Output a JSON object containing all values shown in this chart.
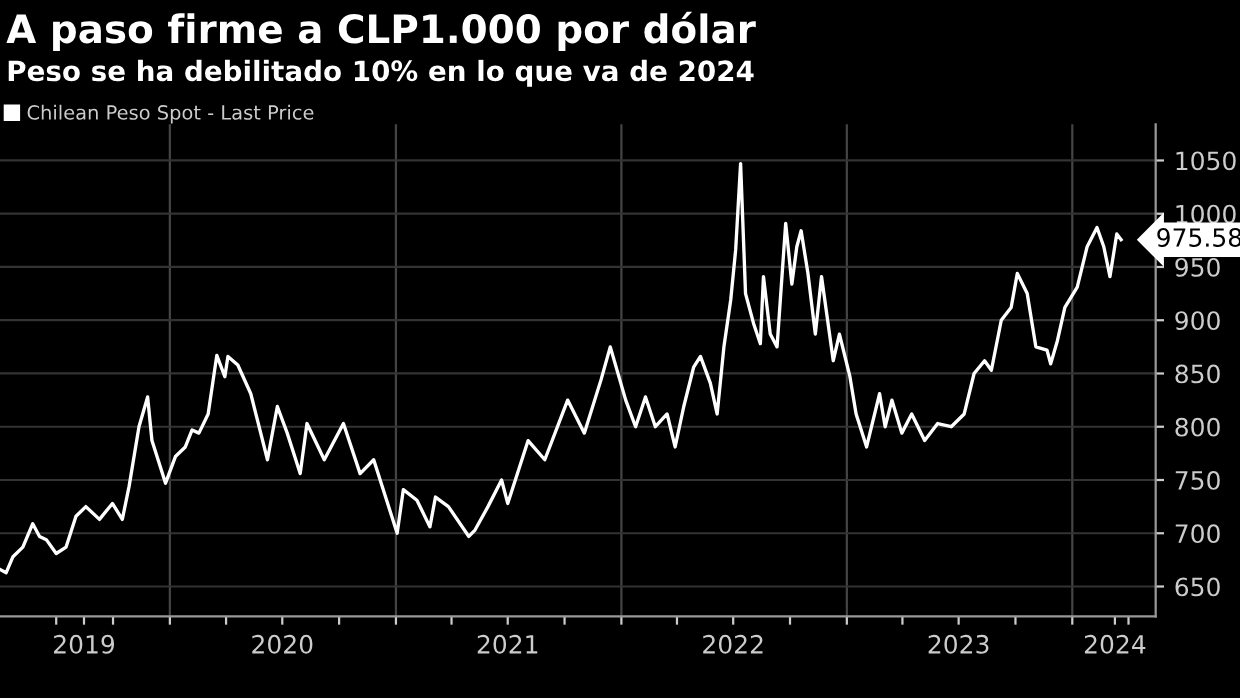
{
  "chart_data": {
    "type": "line",
    "title": "A paso firme a CLP1.000 por dólar",
    "subtitle": "Peso se ha debilitado 10% en lo que va de 2024",
    "x": [
      "2019-04-01",
      "2019-04-11",
      "2019-04-22",
      "2019-05-08",
      "2019-05-24",
      "2019-06-04",
      "2019-06-15",
      "2019-07-01",
      "2019-07-17",
      "2019-08-02",
      "2019-08-18",
      "2019-09-09",
      "2019-09-30",
      "2019-10-16",
      "2019-10-27",
      "2019-11-12",
      "2019-11-26",
      "2019-12-03",
      "2019-12-25",
      "2020-01-10",
      "2020-01-26",
      "2020-02-06",
      "2020-02-17",
      "2020-03-03",
      "2020-03-17",
      "2020-03-30",
      "2020-04-04",
      "2020-04-20",
      "2020-05-11",
      "2020-06-07",
      "2020-06-23",
      "2020-07-09",
      "2020-07-30",
      "2020-08-10",
      "2020-09-07",
      "2020-10-08",
      "2020-11-04",
      "2020-11-26",
      "2021-01-03",
      "2021-01-13",
      "2021-02-04",
      "2021-02-25",
      "2021-03-06",
      "2021-03-27",
      "2021-04-29",
      "2021-05-09",
      "2021-05-30",
      "2021-06-21",
      "2021-07-01",
      "2021-08-03",
      "2021-08-30",
      "2021-10-06",
      "2021-11-02",
      "2021-11-29",
      "2021-12-14",
      "2022-01-08",
      "2022-01-24",
      "2022-02-09",
      "2022-02-25",
      "2022-03-16",
      "2022-03-29",
      "2022-04-12",
      "2022-04-28",
      "2022-05-09",
      "2022-05-25",
      "2022-06-05",
      "2022-06-16",
      "2022-06-27",
      "2022-07-05",
      "2022-07-13",
      "2022-07-21",
      "2022-08-03",
      "2022-08-14",
      "2022-08-19",
      "2022-08-30",
      "2022-09-10",
      "2022-09-24",
      "2022-10-04",
      "2022-10-12",
      "2022-10-19",
      "2022-10-30",
      "2022-11-11",
      "2022-11-21",
      "2022-12-10",
      "2022-12-20",
      "2023-01-06",
      "2023-01-16",
      "2023-02-02",
      "2023-02-23",
      "2023-03-04",
      "2023-03-15",
      "2023-03-31",
      "2023-04-16",
      "2023-05-07",
      "2023-05-28",
      "2023-06-19",
      "2023-07-10",
      "2023-07-26",
      "2023-08-12",
      "2023-08-23",
      "2023-09-08",
      "2023-09-24",
      "2023-10-04",
      "2023-10-20",
      "2023-11-03",
      "2023-11-21",
      "2023-11-27",
      "2023-12-08",
      "2023-12-20",
      "2024-01-09",
      "2024-01-25",
      "2024-02-10",
      "2024-02-21",
      "2024-03-02",
      "2024-03-13",
      "2024-03-20"
    ],
    "series": [
      {
        "name": "Chilean Peso Spot - Last Price",
        "color": "#ffffff",
        "values": [
          666,
          663,
          678,
          687,
          709,
          697,
          694,
          681,
          687,
          716,
          725,
          713,
          728,
          713,
          744,
          800,
          828,
          787,
          747,
          772,
          781,
          797,
          794,
          812,
          867,
          847,
          866,
          858,
          831,
          769,
          819,
          794,
          756,
          803,
          769,
          803,
          756,
          769,
          700,
          741,
          731,
          706,
          734,
          725,
          697,
          703,
          725,
          750,
          728,
          787,
          769,
          825,
          794,
          844,
          875,
          825,
          800,
          828,
          800,
          812,
          781,
          819,
          856,
          866,
          841,
          812,
          875,
          919,
          966,
          1047,
          925,
          897,
          878,
          941,
          887,
          875,
          991,
          934,
          969,
          984,
          944,
          887,
          941,
          862,
          887,
          847,
          812,
          781,
          831,
          800,
          825,
          794,
          812,
          787,
          803,
          800,
          812,
          850,
          862,
          853,
          900,
          912,
          944,
          925,
          875,
          872,
          859,
          881,
          912,
          931,
          969,
          987,
          969,
          941,
          981,
          975.58
        ]
      }
    ],
    "xlim": [
      "2019-04-01",
      "2024-05-15"
    ],
    "xticks": [
      {
        "value": "2019-07-01",
        "label": null
      },
      {
        "value": "2019-08-15",
        "label": "2019"
      },
      {
        "value": "2019-10-01",
        "label": null
      },
      {
        "value": "2020-01-01",
        "label": null
      },
      {
        "value": "2020-04-01",
        "label": null
      },
      {
        "value": "2020-07-01",
        "label": "2020"
      },
      {
        "value": "2020-10-01",
        "label": null
      },
      {
        "value": "2021-01-01",
        "label": null
      },
      {
        "value": "2021-04-01",
        "label": null
      },
      {
        "value": "2021-07-01",
        "label": "2021"
      },
      {
        "value": "2021-10-01",
        "label": null
      },
      {
        "value": "2022-01-01",
        "label": null
      },
      {
        "value": "2022-04-01",
        "label": null
      },
      {
        "value": "2022-07-01",
        "label": "2022"
      },
      {
        "value": "2022-10-01",
        "label": null
      },
      {
        "value": "2023-01-01",
        "label": null
      },
      {
        "value": "2023-04-01",
        "label": null
      },
      {
        "value": "2023-07-01",
        "label": "2023"
      },
      {
        "value": "2023-10-01",
        "label": null
      },
      {
        "value": "2024-01-01",
        "label": null
      },
      {
        "value": "2024-03-10",
        "label": "2024"
      },
      {
        "value": "2024-04-01",
        "label": null
      }
    ],
    "ylim": [
      622,
      1084
    ],
    "yticks": [
      650,
      700,
      750,
      800,
      850,
      900,
      950,
      1000,
      1050
    ],
    "grid": "y",
    "ref_lines": [
      {
        "axis": "x",
        "value": "2020-01-01",
        "label": null,
        "color": "#444444"
      },
      {
        "axis": "x",
        "value": "2021-01-01",
        "label": null,
        "color": "#444444"
      },
      {
        "axis": "x",
        "value": "2022-01-01",
        "label": null,
        "color": "#444444"
      },
      {
        "axis": "x",
        "value": "2023-01-01",
        "label": null,
        "color": "#444444"
      },
      {
        "axis": "x",
        "value": "2024-01-01",
        "label": null,
        "color": "#444444"
      }
    ],
    "annotations": [
      {
        "text": "975.58",
        "x": "2024-03-20",
        "y": 975.58
      }
    ],
    "legend": "top left",
    "line_style": "solid",
    "marker": "none"
  }
}
